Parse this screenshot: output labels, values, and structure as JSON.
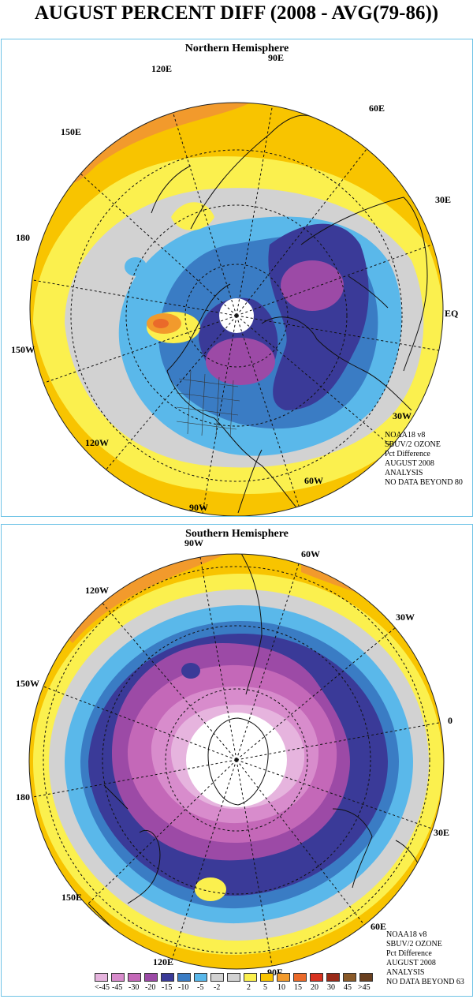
{
  "title": "AUGUST PERCENT DIFF (2008 - AVG(79-86))",
  "colors": {
    "lt-45": "#e6b4de",
    "m45": "#d88ccc",
    "m30": "#c468b8",
    "m20": "#9c4aa6",
    "m15": "#3a3a98",
    "m10": "#3a7cc4",
    "m5": "#5ab8ea",
    "m2": "#d2d2d2",
    "p2": "#fbf04e",
    "p5": "#f8c400",
    "p10": "#f29a2c",
    "p15": "#ea6a2a",
    "p20": "#d83220",
    "p30": "#9a2a18",
    "p45": "#8a5a28",
    "gt45": "#6a4020",
    "coast": "#111111",
    "grid": "#111111"
  },
  "north": {
    "title": "Northern Hemisphere",
    "labels": [
      "90E",
      "60E",
      "120E",
      "150E",
      "30E",
      "180",
      "EQ",
      "150W",
      "30W",
      "120W",
      "90W",
      "60W"
    ],
    "info": [
      "NOAA18 v8",
      "SBUV/2 OZONE",
      "Pct Difference",
      "AUGUST 2008",
      "ANALYSIS",
      "NO DATA BEYOND  80"
    ]
  },
  "south": {
    "title": "Southern Hemisphere",
    "labels": [
      "90W",
      "60W",
      "120W",
      "30W",
      "150W",
      "0",
      "180",
      "30E",
      "150E",
      "60E",
      "120E",
      "90E"
    ],
    "info": [
      "NOAA18 v8",
      "SBUV/2 OZONE",
      "Pct Difference",
      "AUGUST 2008",
      "ANALYSIS",
      "NO DATA BEYOND  63"
    ]
  },
  "legend": {
    "ticks": [
      "<-45",
      "-45",
      "-30",
      "-20",
      "-15",
      "-10",
      "-5",
      "-2",
      "2",
      "5",
      "10",
      "15",
      "20",
      "30",
      "45",
      ">45"
    ],
    "swatches": [
      "lt-45",
      "m45",
      "m30",
      "m20",
      "m15",
      "m10",
      "m5",
      "m2",
      "m2",
      "p2",
      "p5",
      "p10",
      "p15",
      "p20",
      "p30",
      "p45",
      "gt45"
    ]
  }
}
